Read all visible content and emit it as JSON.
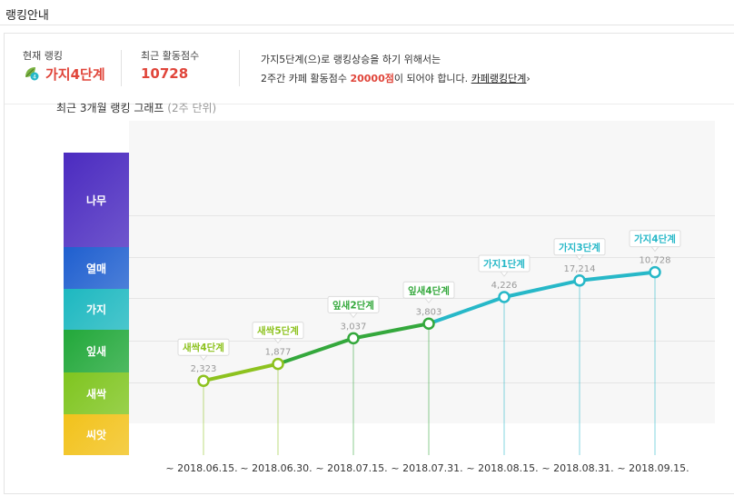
{
  "header": {
    "title": "랭킹안내"
  },
  "info": {
    "rank_label": "현재 랭킹",
    "rank_value": "가지4단계",
    "rank_icon": "leaf-badge-icon",
    "score_label": "최근 활동점수",
    "score_value": "10728",
    "notice_line1": "가지5단계(으)로 랭킹상승을 하기 위해서는",
    "notice_line2_pre": "2주간 카페 활동점수 ",
    "notice_highlight": "20000점",
    "notice_line2_post": "이 되어야 합니다.",
    "notice_link": "카페랭킹단계",
    "notice_link_arrow": "›"
  },
  "chart_data": {
    "type": "line",
    "title": "최근 3개월 랭킹 그래프",
    "subtitle": "(2주 단위)",
    "y_levels": [
      {
        "label": "나무",
        "color": "#4b2bc0"
      },
      {
        "label": "열매",
        "color": "#1f5fcf"
      },
      {
        "label": "가지",
        "color": "#1db8c0"
      },
      {
        "label": "잎새",
        "color": "#22a83a"
      },
      {
        "label": "새싹",
        "color": "#7fc51f"
      },
      {
        "label": "씨앗",
        "color": "#f2c21b"
      }
    ],
    "categories": [
      "~ 2018.06.15.",
      "~ 2018.06.30.",
      "~ 2018.07.15.",
      "~ 2018.07.31.",
      "~ 2018.08.15.",
      "~ 2018.08.31.",
      "~ 2018.09.15."
    ],
    "points": [
      {
        "level_index": 4,
        "rank": "새싹4단계",
        "score": "2,323",
        "color": "#8dc21f"
      },
      {
        "level_index": 4,
        "rank": "새싹5단계",
        "score": "1,877",
        "color": "#8dc21f"
      },
      {
        "level_index": 3,
        "rank": "잎새2단계",
        "score": "3,037",
        "color": "#34a83c"
      },
      {
        "level_index": 3,
        "rank": "잎새4단계",
        "score": "3,803",
        "color": "#34a83c"
      },
      {
        "level_index": 2,
        "rank": "가지1단계",
        "score": "4,226",
        "color": "#27b8c8"
      },
      {
        "level_index": 2,
        "rank": "가지3단계",
        "score": "17,214",
        "color": "#27b8c8"
      },
      {
        "level_index": 2,
        "rank": "가지4단계",
        "score": "10,728",
        "color": "#27b8c8"
      }
    ],
    "point_levels": [
      4.2,
      3.8,
      3.2,
      2.85,
      2.2,
      1.8,
      1.6
    ]
  }
}
